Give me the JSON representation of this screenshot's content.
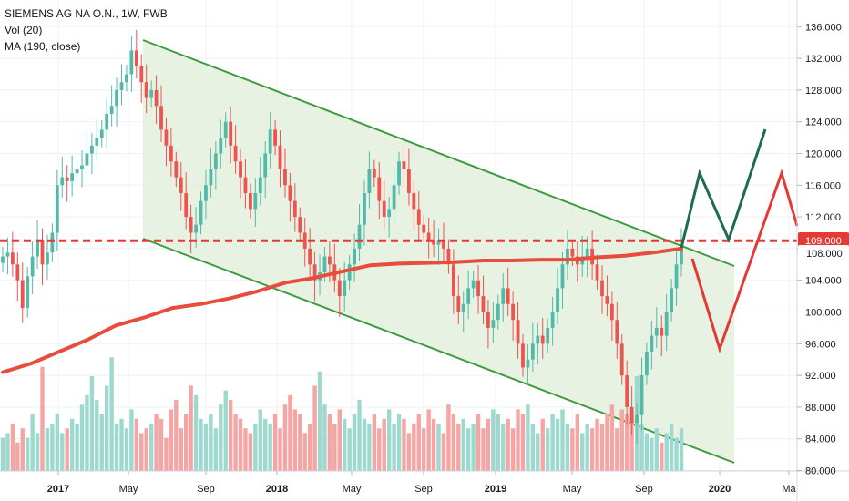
{
  "legend": {
    "symbol": "SIEMENS AG NA O.N., 1W, FWB",
    "vol": "Vol (20)",
    "ma": "MA (190, close)"
  },
  "colors": {
    "up": "#53b9a8",
    "down": "#ef5350",
    "up_vol": "#9ed9cf",
    "down_vol": "#f4a5a4",
    "ma": "#e84c3d",
    "channel": "#3f9b3f",
    "channel_fill": "#e3f0de",
    "level_line": "#e53935",
    "projection_up": "#1e6b52",
    "projection_down": "#e53935",
    "grid": "#eef0f3"
  },
  "chart_data": {
    "type": "candlestick",
    "y_axis": {
      "ticks": [
        "80.000",
        "84.000",
        "88.000",
        "92.000",
        "96.000",
        "100.000",
        "104.000",
        "108.000",
        "112.000",
        "116.000",
        "120.000",
        "124.000",
        "128.000",
        "132.000",
        "136.000"
      ],
      "range": [
        79.5,
        138.0
      ]
    },
    "x_axis": {
      "ticks": [
        {
          "label": "2017",
          "bold": true
        },
        {
          "label": "May",
          "bold": false
        },
        {
          "label": "Sep",
          "bold": false
        },
        {
          "label": "2018",
          "bold": true
        },
        {
          "label": "May",
          "bold": false
        },
        {
          "label": "Sep",
          "bold": false
        },
        {
          "label": "2019",
          "bold": true
        },
        {
          "label": "May",
          "bold": false
        },
        {
          "label": "Sep",
          "bold": false
        },
        {
          "label": "2020",
          "bold": true
        },
        {
          "label": "Ma",
          "bold": false
        }
      ]
    },
    "level": {
      "value": 109.0,
      "label": "109.000"
    },
    "close_tag": "108.000",
    "close_series": [
      107,
      107.5,
      106,
      104,
      100.5,
      104.5,
      107,
      109,
      106,
      107.5,
      110,
      116,
      117,
      116.5,
      117.5,
      118,
      118.5,
      120,
      121,
      122,
      123,
      125,
      126,
      128,
      129,
      130,
      133,
      131,
      129,
      127,
      128,
      126,
      123,
      121,
      119,
      117,
      115,
      112,
      110,
      111,
      114,
      116,
      118,
      120,
      122,
      124,
      121,
      119,
      117,
      115,
      113,
      115,
      117,
      120,
      123,
      121,
      118,
      116,
      114,
      112,
      110,
      108,
      106,
      104,
      105,
      107,
      106,
      104,
      102,
      104,
      106,
      108,
      111,
      115,
      118,
      117,
      114,
      112,
      113,
      116,
      119,
      118,
      115,
      113,
      111,
      110,
      109,
      108.5,
      109,
      108,
      106,
      102,
      100,
      101,
      103,
      104,
      102,
      100,
      98,
      99,
      101,
      103,
      101,
      99,
      96,
      93,
      94,
      96,
      97,
      96,
      98,
      100,
      103,
      106,
      108,
      107,
      106,
      107,
      108,
      106,
      104,
      102,
      101,
      99,
      96,
      92,
      88,
      86,
      87,
      92,
      95,
      97,
      98,
      97,
      100,
      103,
      106,
      108
    ],
    "ma_series": [
      92.4,
      93.5,
      95,
      96.5,
      98.3,
      99.3,
      100.5,
      101,
      101.7,
      102.6,
      103.7,
      104.3,
      105.1,
      105.9,
      106.1,
      106.2,
      106.3,
      106.5,
      106.5,
      106.6,
      106.6,
      106.9,
      107.1,
      107.5,
      108
    ],
    "volume_series": [
      7,
      8,
      10,
      6,
      9,
      7,
      12,
      8,
      22,
      9,
      10,
      12,
      8,
      9,
      11,
      10,
      14,
      16,
      20,
      15,
      12,
      18,
      24,
      10,
      11,
      9,
      13,
      11,
      8,
      9,
      10,
      12,
      11,
      7,
      13,
      15,
      9,
      12,
      18,
      16,
      11,
      10,
      12,
      9,
      14,
      17,
      15,
      12,
      11,
      9,
      8,
      10,
      13,
      11,
      10,
      12,
      9,
      14,
      16,
      13,
      12,
      8,
      10,
      18,
      21,
      14,
      12,
      10,
      13,
      11,
      9,
      12,
      15,
      11,
      10,
      12,
      9,
      11,
      13,
      10,
      12,
      11,
      8,
      10,
      12,
      9,
      13,
      11,
      10,
      8,
      14,
      12,
      10,
      11,
      9,
      10,
      12,
      9,
      11,
      13,
      12,
      10,
      11,
      9,
      13,
      12,
      14,
      10,
      8,
      11,
      9,
      12,
      11,
      13,
      10,
      9,
      12,
      8,
      10,
      9,
      11,
      10,
      12,
      14,
      9,
      13,
      12,
      11,
      20,
      10,
      8,
      7,
      9,
      6,
      8,
      10,
      7,
      9,
      11,
      6
    ]
  }
}
